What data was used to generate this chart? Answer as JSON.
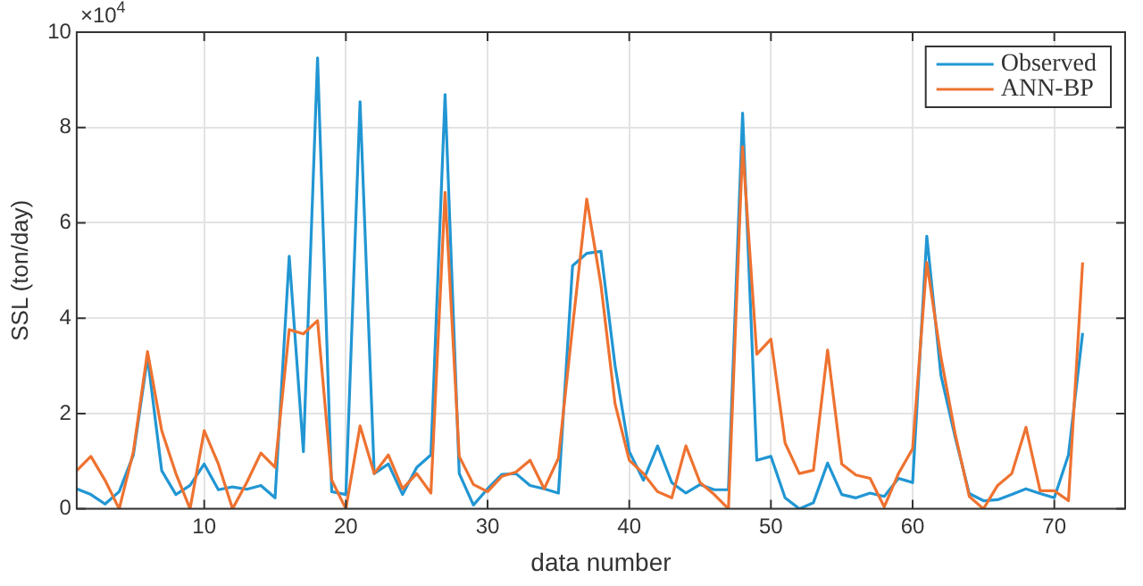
{
  "chart_data": {
    "type": "line",
    "xlabel": "data number",
    "ylabel": "SSL (ton/day)",
    "annotations": [
      "×10$^{4}$"
    ],
    "x": [
      1,
      2,
      3,
      4,
      5,
      6,
      7,
      8,
      9,
      10,
      11,
      12,
      13,
      14,
      15,
      16,
      17,
      18,
      19,
      20,
      21,
      22,
      23,
      24,
      25,
      26,
      27,
      28,
      29,
      30,
      31,
      32,
      33,
      34,
      35,
      36,
      37,
      38,
      39,
      40,
      41,
      42,
      43,
      44,
      45,
      46,
      47,
      48,
      49,
      50,
      51,
      52,
      53,
      54,
      55,
      56,
      57,
      58,
      59,
      60,
      61,
      62,
      63,
      64,
      65,
      66,
      67,
      68,
      69,
      70,
      71,
      72
    ],
    "xlim": [
      1,
      75
    ],
    "xticks": [
      10,
      20,
      30,
      40,
      50,
      60,
      70
    ],
    "ylim": [
      0,
      10
    ],
    "yticks": [
      0,
      2,
      4,
      6,
      8,
      10
    ],
    "grid": true,
    "legend": "top right",
    "marker": "none",
    "line_style": "solid",
    "series": [
      {
        "name": "Observed",
        "color": "#2196d3",
        "values": [
          0.42,
          0.3,
          0.1,
          0.36,
          1.13,
          3.18,
          0.8,
          0.3,
          0.49,
          0.94,
          0.4,
          0.46,
          0.41,
          0.49,
          0.23,
          5.3,
          1.2,
          9.46,
          0.36,
          0.3,
          8.54,
          0.74,
          0.94,
          0.3,
          0.87,
          1.13,
          8.69,
          0.74,
          0.08,
          0.42,
          0.72,
          0.74,
          0.49,
          0.42,
          0.33,
          5.1,
          5.36,
          5.4,
          3.0,
          1.2,
          0.6,
          1.32,
          0.55,
          0.33,
          0.51,
          0.4,
          0.4,
          8.3,
          1.02,
          1.1,
          0.23,
          0,
          0.13,
          0.96,
          0.3,
          0.23,
          0.33,
          0.26,
          0.64,
          0.55,
          5.72,
          2.8,
          1.51,
          0.32,
          0.17,
          0.19,
          0.3,
          0.42,
          0.32,
          0.23,
          1.13,
          3.69
        ]
      },
      {
        "name": "ANN-BP",
        "color": "#ee7230",
        "values": [
          0.8,
          1.1,
          0.6,
          0,
          1.2,
          3.3,
          1.64,
          0.74,
          0,
          1.64,
          0.94,
          0,
          0.55,
          1.17,
          0.87,
          3.76,
          3.67,
          3.95,
          0.6,
          0,
          1.74,
          0.74,
          1.13,
          0.42,
          0.74,
          0.33,
          6.64,
          1.1,
          0.51,
          0.36,
          0.68,
          0.77,
          1.02,
          0.42,
          1.06,
          3.82,
          6.5,
          4.7,
          2.2,
          1.02,
          0.74,
          0.36,
          0.23,
          1.32,
          0.55,
          0.3,
          0,
          7.6,
          3.24,
          3.56,
          1.38,
          0.74,
          0.81,
          3.33,
          0.94,
          0.71,
          0.64,
          0.04,
          0.74,
          1.26,
          5.17,
          3.18,
          1.58,
          0.26,
          0,
          0.49,
          0.74,
          1.71,
          0.38,
          0.38,
          0.17,
          5.17
        ]
      }
    ]
  }
}
